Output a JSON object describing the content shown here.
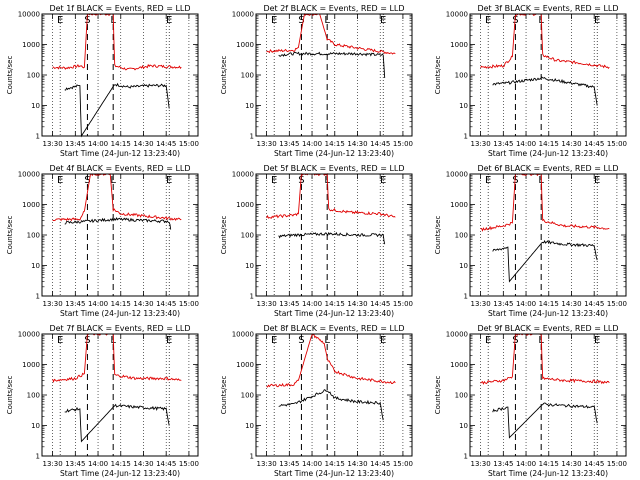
{
  "figure": {
    "xlabel": "Start Time (24-Jun-12 13:23:40)",
    "ylabel": "Counts/sec",
    "x_tick_labels": [
      "13:30",
      "13:45",
      "14:00",
      "14:15",
      "14:30",
      "14:45",
      "15:00"
    ],
    "y_tick_labels": [
      "1",
      "10",
      "100",
      "1000",
      "10000"
    ],
    "marker_labels": [
      "E",
      "S",
      "L",
      "E"
    ],
    "colors": {
      "events": "#000000",
      "lld": "#e00000",
      "axes": "#000000",
      "background": "#ffffff"
    }
  },
  "chart_data": [
    {
      "type": "line",
      "title": "Det 1f BLACK = Events, RED = LLD",
      "x": [
        "13:30",
        "14:55"
      ],
      "ylim": [
        1,
        10000
      ],
      "y_scale": "log",
      "xlabel": "Start Time (24-Jun-12 13:23:40)",
      "ylabel": "Counts/sec",
      "markers": [
        {
          "label": "E",
          "time": "13:35"
        },
        {
          "label": "S",
          "time": "13:53"
        },
        {
          "label": "L",
          "time": "14:10"
        },
        {
          "label": "E",
          "time": "14:47"
        }
      ],
      "series": [
        {
          "name": "LLD",
          "color": "red",
          "points": [
            [
              "13:30",
              180
            ],
            [
              "13:39",
              170
            ],
            [
              "13:48",
              200
            ],
            [
              "13:51",
              180
            ],
            [
              "13:53",
              10000
            ],
            [
              "14:10",
              10000
            ],
            [
              "14:11",
              200
            ],
            [
              "14:20",
              150
            ],
            [
              "14:35",
              200
            ],
            [
              "14:55",
              180
            ]
          ]
        },
        {
          "name": "Events",
          "color": "black",
          "points": [
            [
              "13:38",
              35
            ],
            [
              "13:48",
              45
            ],
            [
              "13:49",
              1
            ],
            [
              "14:11",
              50
            ],
            [
              "14:20",
              40
            ],
            [
              "14:35",
              45
            ],
            [
              "14:45",
              45
            ],
            [
              "14:47",
              8
            ]
          ]
        }
      ]
    },
    {
      "type": "line",
      "title": "Det 2f BLACK = Events, RED = LLD",
      "x": [
        "13:30",
        "14:55"
      ],
      "ylim": [
        1,
        10000
      ],
      "y_scale": "log",
      "xlabel": "Start Time (24-Jun-12 13:23:40)",
      "ylabel": "Counts/sec",
      "markers": [
        {
          "label": "E",
          "time": "13:35"
        },
        {
          "label": "S",
          "time": "13:53"
        },
        {
          "label": "L",
          "time": "14:10"
        },
        {
          "label": "E",
          "time": "14:47"
        }
      ],
      "series": [
        {
          "name": "LLD",
          "color": "red",
          "points": [
            [
              "13:30",
              600
            ],
            [
              "13:48",
              650
            ],
            [
              "13:51",
              800
            ],
            [
              "13:55",
              10000
            ],
            [
              "14:05",
              10000
            ],
            [
              "14:10",
              1500
            ],
            [
              "14:15",
              1000
            ],
            [
              "14:35",
              700
            ],
            [
              "14:55",
              500
            ]
          ]
        },
        {
          "name": "Events",
          "color": "black",
          "points": [
            [
              "13:38",
              450
            ],
            [
              "13:48",
              500
            ],
            [
              "14:11",
              500
            ],
            [
              "14:30",
              500
            ],
            [
              "14:47",
              450
            ],
            [
              "14:48",
              80
            ]
          ]
        }
      ]
    },
    {
      "type": "line",
      "title": "Det 3f BLACK = Events, RED = LLD",
      "x": [
        "13:30",
        "14:55"
      ],
      "ylim": [
        1,
        10000
      ],
      "y_scale": "log",
      "xlabel": "Start Time (24-Jun-12 13:23:40)",
      "ylabel": "Counts/sec",
      "markers": [
        {
          "label": "E",
          "time": "13:35"
        },
        {
          "label": "S",
          "time": "13:53"
        },
        {
          "label": "L",
          "time": "14:10"
        },
        {
          "label": "E",
          "time": "14:47"
        }
      ],
      "series": [
        {
          "name": "LLD",
          "color": "red",
          "points": [
            [
              "13:30",
              180
            ],
            [
              "13:45",
              200
            ],
            [
              "13:51",
              400
            ],
            [
              "13:53",
              10000
            ],
            [
              "14:10",
              10000
            ],
            [
              "14:11",
              450
            ],
            [
              "14:20",
              300
            ],
            [
              "14:35",
              250
            ],
            [
              "14:55",
              180
            ]
          ]
        },
        {
          "name": "Events",
          "color": "black",
          "points": [
            [
              "13:38",
              50
            ],
            [
              "13:48",
              55
            ],
            [
              "14:11",
              80
            ],
            [
              "14:25",
              60
            ],
            [
              "14:45",
              40
            ],
            [
              "14:47",
              10
            ]
          ]
        }
      ]
    },
    {
      "type": "line",
      "title": "Det 4f BLACK = Events, RED = LLD",
      "x": [
        "13:30",
        "14:55"
      ],
      "ylim": [
        1,
        10000
      ],
      "y_scale": "log",
      "xlabel": "Start Time (24-Jun-12 13:23:40)",
      "ylabel": "Counts/sec",
      "markers": [
        {
          "label": "E",
          "time": "13:35"
        },
        {
          "label": "S",
          "time": "13:53"
        },
        {
          "label": "L",
          "time": "14:10"
        },
        {
          "label": "E",
          "time": "14:47"
        }
      ],
      "series": [
        {
          "name": "LLD",
          "color": "red",
          "points": [
            [
              "13:30",
              320
            ],
            [
              "13:48",
              330
            ],
            [
              "13:51",
              600
            ],
            [
              "13:55",
              10000
            ],
            [
              "14:08",
              10000
            ],
            [
              "14:10",
              700
            ],
            [
              "14:15",
              500
            ],
            [
              "14:35",
              400
            ],
            [
              "14:55",
              320
            ]
          ]
        },
        {
          "name": "Events",
          "color": "black",
          "points": [
            [
              "13:38",
              250
            ],
            [
              "13:48",
              270
            ],
            [
              "14:11",
              330
            ],
            [
              "14:30",
              300
            ],
            [
              "14:47",
              280
            ],
            [
              "14:48",
              150
            ]
          ]
        }
      ]
    },
    {
      "type": "line",
      "title": "Det 5f BLACK = Events, RED = LLD",
      "x": [
        "13:30",
        "14:55"
      ],
      "ylim": [
        1,
        10000
      ],
      "y_scale": "log",
      "xlabel": "Start Time (24-Jun-12 13:23:40)",
      "ylabel": "Counts/sec",
      "markers": [
        {
          "label": "E",
          "time": "13:35"
        },
        {
          "label": "S",
          "time": "13:53"
        },
        {
          "label": "L",
          "time": "14:10"
        },
        {
          "label": "E",
          "time": "14:47"
        }
      ],
      "series": [
        {
          "name": "LLD",
          "color": "red",
          "points": [
            [
              "13:30",
              380
            ],
            [
              "13:48",
              450
            ],
            [
              "13:51",
              500
            ],
            [
              "13:53",
              10000
            ],
            [
              "14:10",
              10000
            ],
            [
              "14:11",
              700
            ],
            [
              "14:25",
              550
            ],
            [
              "14:45",
              500
            ],
            [
              "14:55",
              380
            ]
          ]
        },
        {
          "name": "Events",
          "color": "black",
          "points": [
            [
              "13:38",
              90
            ],
            [
              "13:48",
              100
            ],
            [
              "14:11",
              110
            ],
            [
              "14:30",
              100
            ],
            [
              "14:47",
              100
            ],
            [
              "14:48",
              50
            ]
          ]
        }
      ]
    },
    {
      "type": "line",
      "title": "Det 6f BLACK = Events, RED = LLD",
      "x": [
        "13:30",
        "14:55"
      ],
      "ylim": [
        1,
        10000
      ],
      "y_scale": "log",
      "xlabel": "Start Time (24-Jun-12 13:23:40)",
      "ylabel": "Counts/sec",
      "markers": [
        {
          "label": "E",
          "time": "13:35"
        },
        {
          "label": "S",
          "time": "13:53"
        },
        {
          "label": "L",
          "time": "14:10"
        },
        {
          "label": "E",
          "time": "14:47"
        }
      ],
      "series": [
        {
          "name": "LLD",
          "color": "red",
          "points": [
            [
              "13:30",
              150
            ],
            [
              "13:45",
              200
            ],
            [
              "13:51",
              250
            ],
            [
              "13:53",
              10000
            ],
            [
              "14:10",
              10000
            ],
            [
              "14:11",
              300
            ],
            [
              "14:25",
              200
            ],
            [
              "14:45",
              180
            ],
            [
              "14:55",
              160
            ]
          ]
        },
        {
          "name": "Events",
          "color": "black",
          "points": [
            [
              "13:38",
              30
            ],
            [
              "13:48",
              40
            ],
            [
              "13:49",
              3
            ],
            [
              "14:11",
              60
            ],
            [
              "14:25",
              50
            ],
            [
              "14:45",
              45
            ],
            [
              "14:47",
              15
            ]
          ]
        }
      ]
    },
    {
      "type": "line",
      "title": "Det 7f BLACK = Events, RED = LLD",
      "x": [
        "13:30",
        "14:55"
      ],
      "ylim": [
        1,
        10000
      ],
      "y_scale": "log",
      "xlabel": "Start Time (24-Jun-12 13:23:40)",
      "ylabel": "Counts/sec",
      "markers": [
        {
          "label": "E",
          "time": "13:35"
        },
        {
          "label": "S",
          "time": "13:53"
        },
        {
          "label": "L",
          "time": "14:10"
        },
        {
          "label": "E",
          "time": "14:47"
        }
      ],
      "series": [
        {
          "name": "LLD",
          "color": "red",
          "points": [
            [
              "13:30",
              300
            ],
            [
              "13:45",
              350
            ],
            [
              "13:51",
              500
            ],
            [
              "13:53",
              10000
            ],
            [
              "14:10",
              10000
            ],
            [
              "14:11",
              450
            ],
            [
              "14:25",
              350
            ],
            [
              "14:45",
              350
            ],
            [
              "14:55",
              300
            ]
          ]
        },
        {
          "name": "Events",
          "color": "black",
          "points": [
            [
              "13:38",
              30
            ],
            [
              "13:48",
              35
            ],
            [
              "13:49",
              3
            ],
            [
              "14:11",
              45
            ],
            [
              "14:25",
              40
            ],
            [
              "14:45",
              35
            ],
            [
              "14:47",
              10
            ]
          ]
        }
      ]
    },
    {
      "type": "line",
      "title": "Det 8f BLACK = Events, RED = LLD",
      "x": [
        "13:30",
        "14:55"
      ],
      "ylim": [
        1,
        10000
      ],
      "y_scale": "log",
      "xlabel": "Start Time (24-Jun-12 13:23:40)",
      "ylabel": "Counts/sec",
      "markers": [
        {
          "label": "E",
          "time": "13:35"
        },
        {
          "label": "S",
          "time": "13:53"
        },
        {
          "label": "L",
          "time": "14:10"
        },
        {
          "label": "E",
          "time": "14:47"
        }
      ],
      "series": [
        {
          "name": "LLD",
          "color": "red",
          "points": [
            [
              "13:30",
              200
            ],
            [
              "13:48",
              220
            ],
            [
              "13:51",
              300
            ],
            [
              "14:00",
              10000
            ],
            [
              "14:08",
              5000
            ],
            [
              "14:10",
              1500
            ],
            [
              "14:15",
              600
            ],
            [
              "14:30",
              350
            ],
            [
              "14:55",
              250
            ]
          ]
        },
        {
          "name": "Events",
          "color": "black",
          "points": [
            [
              "13:38",
              45
            ],
            [
              "13:48",
              50
            ],
            [
              "14:10",
              150
            ],
            [
              "14:15",
              80
            ],
            [
              "14:30",
              60
            ],
            [
              "14:45",
              55
            ],
            [
              "14:47",
              15
            ]
          ]
        }
      ]
    },
    {
      "type": "line",
      "title": "Det 9f BLACK = Events, RED = LLD",
      "x": [
        "13:30",
        "14:55"
      ],
      "ylim": [
        1,
        10000
      ],
      "y_scale": "log",
      "xlabel": "Start Time (24-Jun-12 13:23:40)",
      "ylabel": "Counts/sec",
      "markers": [
        {
          "label": "E",
          "time": "13:35"
        },
        {
          "label": "S",
          "time": "13:53"
        },
        {
          "label": "L",
          "time": "14:10"
        },
        {
          "label": "E",
          "time": "14:47"
        }
      ],
      "series": [
        {
          "name": "LLD",
          "color": "red",
          "points": [
            [
              "13:30",
              250
            ],
            [
              "13:45",
              300
            ],
            [
              "13:51",
              400
            ],
            [
              "13:53",
              10000
            ],
            [
              "14:10",
              10000
            ],
            [
              "14:11",
              350
            ],
            [
              "14:25",
              300
            ],
            [
              "14:45",
              280
            ],
            [
              "14:55",
              250
            ]
          ]
        },
        {
          "name": "Events",
          "color": "black",
          "points": [
            [
              "13:38",
              30
            ],
            [
              "13:48",
              40
            ],
            [
              "13:49",
              4
            ],
            [
              "14:11",
              50
            ],
            [
              "14:25",
              45
            ],
            [
              "14:45",
              40
            ],
            [
              "14:47",
              12
            ]
          ]
        }
      ]
    }
  ]
}
